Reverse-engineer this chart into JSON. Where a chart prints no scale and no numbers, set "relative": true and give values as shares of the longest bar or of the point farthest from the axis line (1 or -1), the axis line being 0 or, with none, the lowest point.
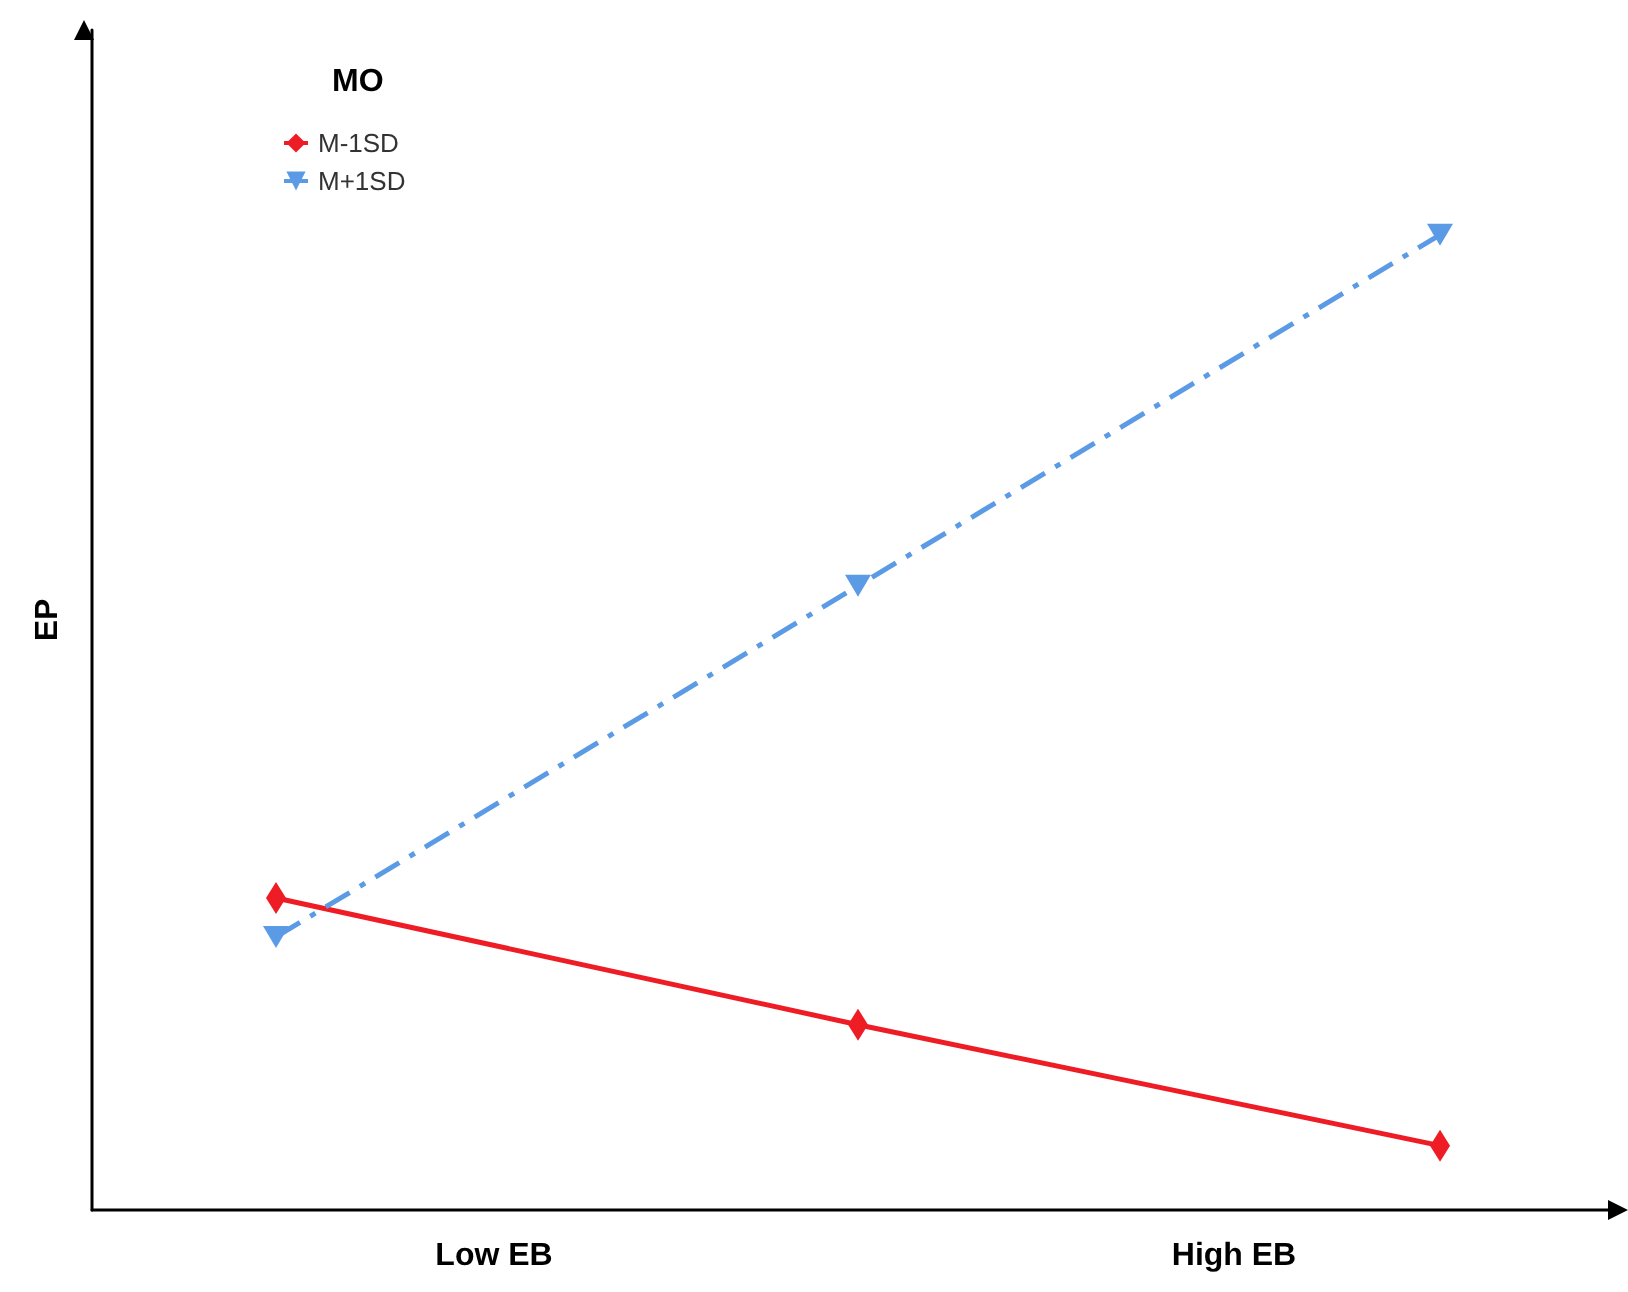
{
  "chart_data": {
    "type": "line",
    "relative": true,
    "ylabel": "EP",
    "legend_title": "MO",
    "legend": "top left",
    "grid": false,
    "categories": [
      null,
      null,
      null
    ],
    "annotations": [
      "Low EB",
      "High EB"
    ],
    "series": [
      {
        "name": "M-1SD",
        "color": "#ee1c25",
        "values": [
          0.32,
          0.19,
          0.066
        ],
        "marker": "diamond",
        "line_style": "solid"
      },
      {
        "name": "M+1SD",
        "color": "#5b9be6",
        "values": [
          0.28,
          0.64,
          1
        ],
        "marker": "triangle",
        "line_style": "dashed"
      }
    ]
  }
}
